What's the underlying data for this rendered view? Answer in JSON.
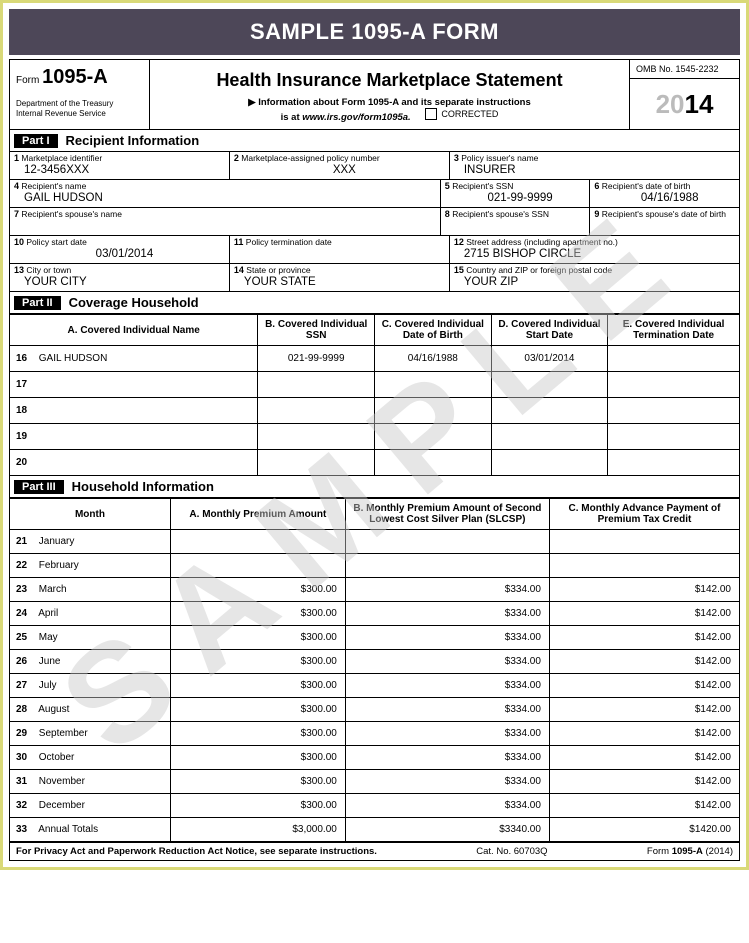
{
  "banner": "SAMPLE 1095-A FORM",
  "header": {
    "form_label": "Form",
    "form_number": "1095-A",
    "dept1": "Department of the Treasury",
    "dept2": "Internal Revenue Service",
    "title": "Health Insurance Marketplace Statement",
    "arrow": "▶",
    "info_line1": "Information about Form 1095-A and its separate instructions",
    "info_line2": "is at",
    "info_url": "www.irs.gov/form1095a.",
    "corrected": "CORRECTED",
    "omb": "OMB No. 1545-2232",
    "year_gray": "20",
    "year_bold": "14"
  },
  "part1": {
    "tag": "Part I",
    "title": "Recipient Information",
    "f1": {
      "num": "1",
      "lbl": "Marketplace identifier",
      "val": "12-3456XXX"
    },
    "f2": {
      "num": "2",
      "lbl": "Marketplace-assigned policy number",
      "val": "XXX"
    },
    "f3": {
      "num": "3",
      "lbl": "Policy issuer's name",
      "val": "INSURER"
    },
    "f4": {
      "num": "4",
      "lbl": "Recipient's name",
      "val": "GAIL HUDSON"
    },
    "f5": {
      "num": "5",
      "lbl": "Recipient's SSN",
      "val": "021-99-9999"
    },
    "f6": {
      "num": "6",
      "lbl": "Recipient's date of birth",
      "val": "04/16/1988"
    },
    "f7": {
      "num": "7",
      "lbl": "Recipient's spouse's name",
      "val": ""
    },
    "f8": {
      "num": "8",
      "lbl": "Recipient's spouse's SSN",
      "val": ""
    },
    "f9": {
      "num": "9",
      "lbl": "Recipient's spouse's date of birth",
      "val": ""
    },
    "f10": {
      "num": "10",
      "lbl": "Policy start date",
      "val": "03/01/2014"
    },
    "f11": {
      "num": "11",
      "lbl": "Policy termination date",
      "val": ""
    },
    "f12": {
      "num": "12",
      "lbl": "Street address (including apartment no.)",
      "val": "2715 BISHOP CIRCLE"
    },
    "f13": {
      "num": "13",
      "lbl": "City or town",
      "val": "YOUR CITY"
    },
    "f14": {
      "num": "14",
      "lbl": "State or province",
      "val": "YOUR STATE"
    },
    "f15": {
      "num": "15",
      "lbl": "Country and ZIP or foreign postal code",
      "val": "YOUR ZIP"
    }
  },
  "part2": {
    "tag": "Part II",
    "title": "Coverage Household",
    "cols": {
      "a": "A. Covered Individual Name",
      "b": "B. Covered Individual SSN",
      "c": "C. Covered Individual Date of Birth",
      "d": "D. Covered Individual Start Date",
      "e": "E. Covered Individual Termination Date"
    },
    "rows": [
      {
        "n": "16",
        "a": "GAIL HUDSON",
        "b": "021-99-9999",
        "c": "04/16/1988",
        "d": "03/01/2014",
        "e": ""
      },
      {
        "n": "17",
        "a": "",
        "b": "",
        "c": "",
        "d": "",
        "e": ""
      },
      {
        "n": "18",
        "a": "",
        "b": "",
        "c": "",
        "d": "",
        "e": ""
      },
      {
        "n": "19",
        "a": "",
        "b": "",
        "c": "",
        "d": "",
        "e": ""
      },
      {
        "n": "20",
        "a": "",
        "b": "",
        "c": "",
        "d": "",
        "e": ""
      }
    ]
  },
  "part3": {
    "tag": "Part III",
    "title": "Household Information",
    "cols": {
      "m": "Month",
      "a": "A. Monthly Premium Amount",
      "b": "B. Monthly Premium Amount of Second Lowest Cost Silver Plan (SLCSP)",
      "c": "C. Monthly Advance Payment of Premium Tax Credit"
    },
    "rows": [
      {
        "n": "21",
        "m": "January",
        "a": "",
        "b": "",
        "c": ""
      },
      {
        "n": "22",
        "m": "February",
        "a": "",
        "b": "",
        "c": ""
      },
      {
        "n": "23",
        "m": "March",
        "a": "$300.00",
        "b": "$334.00",
        "c": "$142.00"
      },
      {
        "n": "24",
        "m": "April",
        "a": "$300.00",
        "b": "$334.00",
        "c": "$142.00"
      },
      {
        "n": "25",
        "m": "May",
        "a": "$300.00",
        "b": "$334.00",
        "c": "$142.00"
      },
      {
        "n": "26",
        "m": "June",
        "a": "$300.00",
        "b": "$334.00",
        "c": "$142.00"
      },
      {
        "n": "27",
        "m": "July",
        "a": "$300.00",
        "b": "$334.00",
        "c": "$142.00"
      },
      {
        "n": "28",
        "m": "August",
        "a": "$300.00",
        "b": "$334.00",
        "c": "$142.00"
      },
      {
        "n": "29",
        "m": "September",
        "a": "$300.00",
        "b": "$334.00",
        "c": "$142.00"
      },
      {
        "n": "30",
        "m": "October",
        "a": "$300.00",
        "b": "$334.00",
        "c": "$142.00"
      },
      {
        "n": "31",
        "m": "November",
        "a": "$300.00",
        "b": "$334.00",
        "c": "$142.00"
      },
      {
        "n": "32",
        "m": "December",
        "a": "$300.00",
        "b": "$334.00",
        "c": "$142.00"
      },
      {
        "n": "33",
        "m": "Annual Totals",
        "a": "$3,000.00",
        "b": "$3340.00",
        "c": "$1420.00"
      }
    ]
  },
  "footer": {
    "left": "For Privacy Act and Paperwork Reduction Act Notice, see separate instructions.",
    "mid": "Cat. No. 60703Q",
    "right_label": "Form",
    "right_form": "1095-A",
    "right_year": "(2014)"
  },
  "watermark": "SAMPLE",
  "styling": {
    "outer_border_color": "#d9d978",
    "banner_bg": "#4d4758",
    "banner_fg": "#ffffff",
    "part_tag_bg": "#000000",
    "part_tag_fg": "#ffffff",
    "text_color": "#000000",
    "watermark_color": "rgba(200,200,200,0.45)",
    "font_family": "Arial, Helvetica, sans-serif",
    "banner_fontsize": 22,
    "title_fontsize": 18,
    "year_fontsize": 26,
    "label_fontsize": 8.5,
    "value_fontsize": 11.5,
    "table_fontsize": 10
  }
}
